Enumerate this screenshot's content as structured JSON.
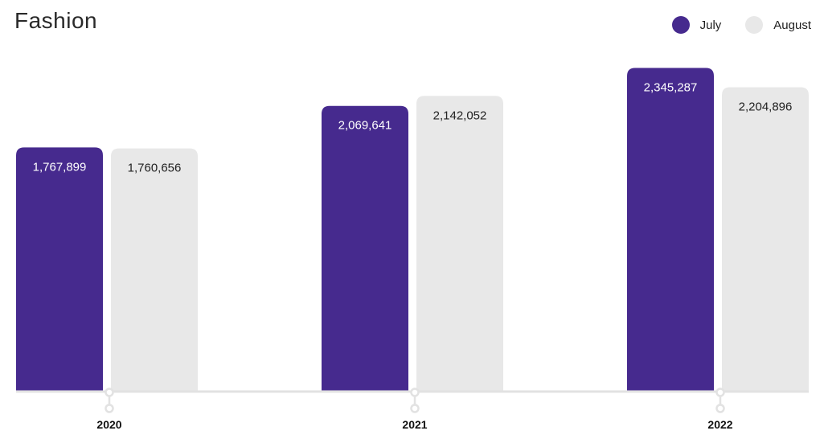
{
  "chart_data": {
    "type": "bar",
    "title": "Fashion",
    "categories": [
      "2020",
      "2021",
      "2022"
    ],
    "series": [
      {
        "name": "July",
        "values": [
          1767899,
          2069641,
          2345287
        ],
        "labels": [
          "1,767,899",
          "2,069,641",
          "2,345,287"
        ],
        "color": "#462a8e",
        "label_color": "#ffffff"
      },
      {
        "name": "August",
        "values": [
          1760656,
          2142052,
          2204896
        ],
        "labels": [
          "1,760,656",
          "2,142,052",
          "2,204,896"
        ],
        "color": "#e8e8e8",
        "label_color": "#222222"
      }
    ],
    "xlabel": "",
    "ylabel": "",
    "ylim": [
      0,
      2500000
    ],
    "grid": false,
    "legend_position": "top-right",
    "axis_color": "#e2e2e2"
  }
}
